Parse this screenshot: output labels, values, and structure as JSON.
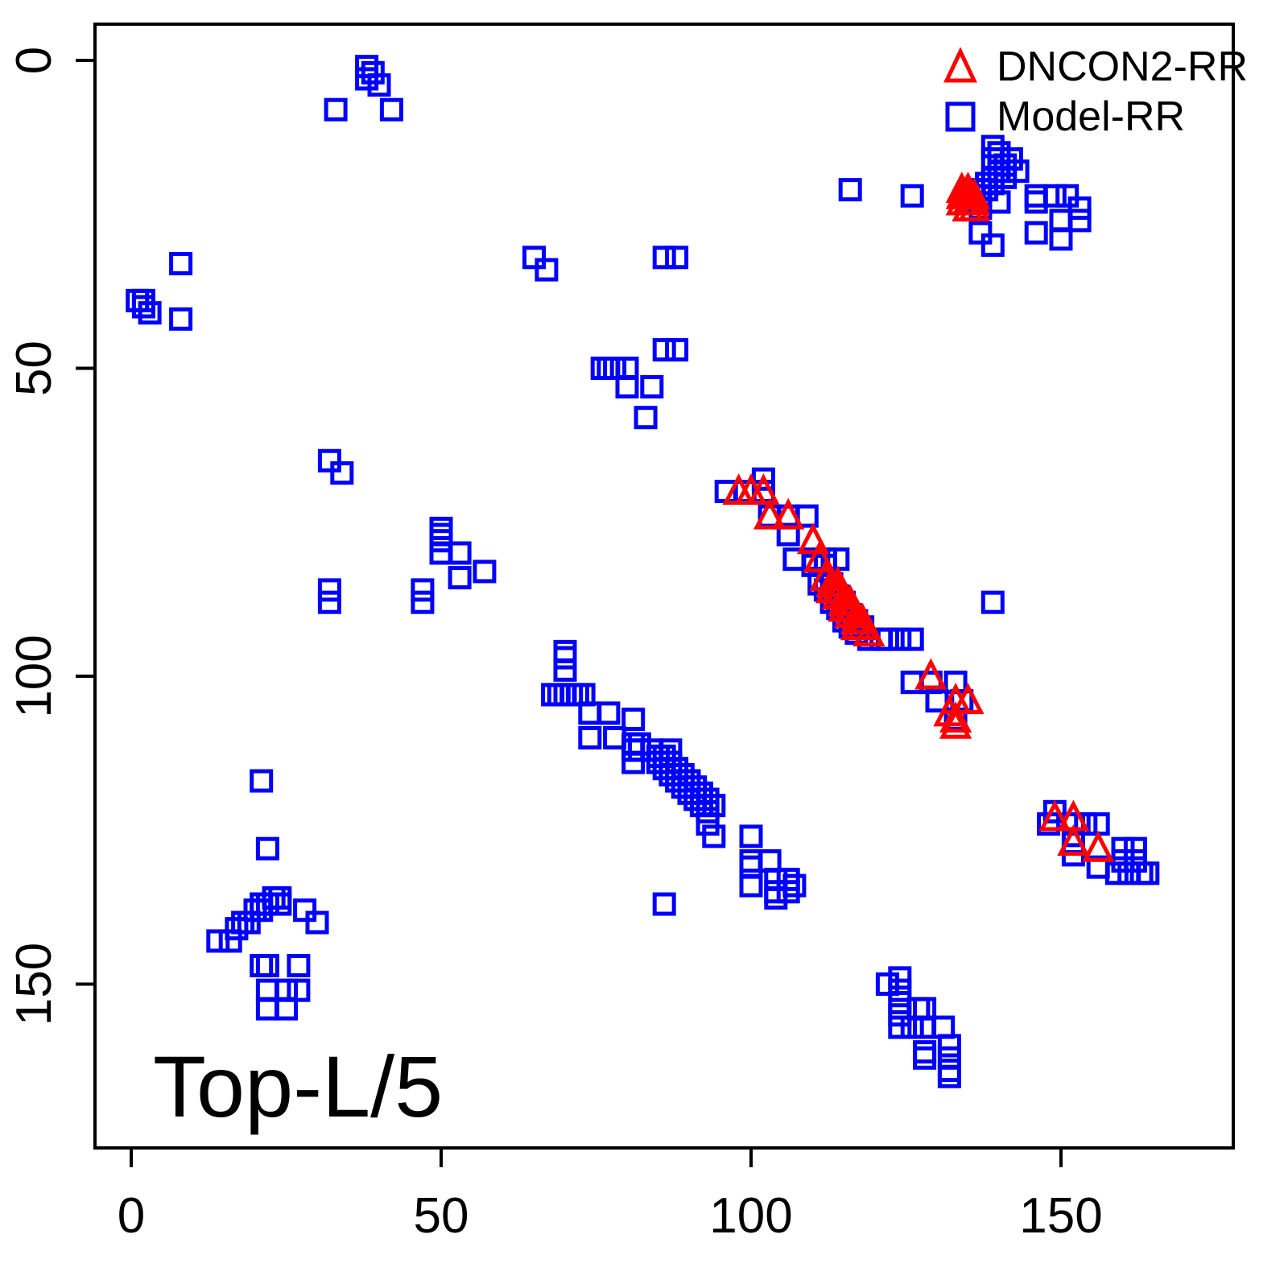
{
  "chart_data": {
    "type": "scatter",
    "title": "",
    "xlabel": "",
    "ylabel": "",
    "annotation": "Top-L/5",
    "x_ticks": [
      0,
      50,
      100,
      150
    ],
    "y_ticks": [
      0,
      50,
      100,
      150
    ],
    "xlim": [
      -6,
      178
    ],
    "ylim": [
      -6,
      176
    ],
    "y_axis_inverted": true,
    "grid": false,
    "legend": {
      "position": "top-right",
      "entries": [
        {
          "label": "DNCON2-RR",
          "marker": "triangle-open",
          "color": "#ff0000"
        },
        {
          "label": "Model-RR",
          "marker": "square-open",
          "color": "#0000ff"
        }
      ]
    },
    "series": [
      {
        "name": "Model-RR",
        "marker": "square-open",
        "color": "#0000ff",
        "points": [
          [
            38,
            1
          ],
          [
            39,
            2
          ],
          [
            38,
            3
          ],
          [
            40,
            4
          ],
          [
            33,
            8
          ],
          [
            42,
            8
          ],
          [
            8,
            33
          ],
          [
            1,
            39
          ],
          [
            2,
            39
          ],
          [
            2,
            40
          ],
          [
            3,
            41
          ],
          [
            8,
            42
          ],
          [
            65,
            32
          ],
          [
            67,
            34
          ],
          [
            86,
            32
          ],
          [
            88,
            32
          ],
          [
            86,
            47
          ],
          [
            88,
            47
          ],
          [
            76,
            50
          ],
          [
            77,
            50
          ],
          [
            78,
            50
          ],
          [
            80,
            50
          ],
          [
            80,
            53
          ],
          [
            84,
            53
          ],
          [
            83,
            58
          ],
          [
            32,
            65
          ],
          [
            34,
            67
          ],
          [
            50,
            76
          ],
          [
            50,
            77
          ],
          [
            50,
            78
          ],
          [
            50,
            80
          ],
          [
            53,
            80
          ],
          [
            53,
            84
          ],
          [
            57,
            83
          ],
          [
            32,
            86
          ],
          [
            32,
            88
          ],
          [
            47,
            86
          ],
          [
            47,
            88
          ],
          [
            96,
            70
          ],
          [
            99,
            70
          ],
          [
            102,
            68
          ],
          [
            102,
            70
          ],
          [
            103,
            74
          ],
          [
            106,
            74
          ],
          [
            109,
            74
          ],
          [
            106,
            77
          ],
          [
            107,
            81
          ],
          [
            110,
            81
          ],
          [
            112,
            81
          ],
          [
            110,
            82
          ],
          [
            112,
            82
          ],
          [
            114,
            81
          ],
          [
            111,
            85
          ],
          [
            113,
            85
          ],
          [
            112,
            86
          ],
          [
            114,
            87
          ],
          [
            113,
            88
          ],
          [
            115,
            88
          ],
          [
            114,
            89
          ],
          [
            116,
            90
          ],
          [
            115,
            91
          ],
          [
            117,
            91
          ],
          [
            116,
            92
          ],
          [
            118,
            92
          ],
          [
            117,
            93
          ],
          [
            119,
            94
          ],
          [
            121,
            94
          ],
          [
            122,
            94
          ],
          [
            124,
            94
          ],
          [
            126,
            94
          ],
          [
            139,
            88
          ],
          [
            126,
            101
          ],
          [
            129,
            101
          ],
          [
            133,
            101
          ],
          [
            130,
            104
          ],
          [
            134,
            104
          ],
          [
            133,
            107
          ],
          [
            70,
            96
          ],
          [
            70,
            97
          ],
          [
            70,
            99
          ],
          [
            68,
            103
          ],
          [
            69,
            103
          ],
          [
            70,
            103
          ],
          [
            71,
            103
          ],
          [
            72,
            103
          ],
          [
            73,
            103
          ],
          [
            74,
            106
          ],
          [
            77,
            106
          ],
          [
            81,
            107
          ],
          [
            74,
            110
          ],
          [
            78,
            110
          ],
          [
            81,
            111
          ],
          [
            82,
            111
          ],
          [
            81,
            112
          ],
          [
            82,
            112
          ],
          [
            81,
            114
          ],
          [
            84,
            112
          ],
          [
            87,
            112
          ],
          [
            85,
            113
          ],
          [
            86,
            113
          ],
          [
            85,
            114
          ],
          [
            87,
            114
          ],
          [
            86,
            115
          ],
          [
            88,
            115
          ],
          [
            87,
            116
          ],
          [
            89,
            116
          ],
          [
            88,
            117
          ],
          [
            90,
            117
          ],
          [
            89,
            118
          ],
          [
            91,
            118
          ],
          [
            90,
            119
          ],
          [
            92,
            119
          ],
          [
            91,
            120
          ],
          [
            93,
            120
          ],
          [
            92,
            121
          ],
          [
            94,
            121
          ],
          [
            93,
            122
          ],
          [
            93,
            124
          ],
          [
            94,
            126
          ],
          [
            100,
            126
          ],
          [
            100,
            130
          ],
          [
            100,
            131
          ],
          [
            100,
            134
          ],
          [
            103,
            130
          ],
          [
            104,
            133
          ],
          [
            106,
            133
          ],
          [
            107,
            134
          ],
          [
            104,
            135
          ],
          [
            106,
            135
          ],
          [
            104,
            136
          ],
          [
            86,
            137
          ],
          [
            21,
            117
          ],
          [
            22,
            128
          ],
          [
            14,
            143
          ],
          [
            16,
            143
          ],
          [
            17,
            141
          ],
          [
            18,
            140
          ],
          [
            19,
            140
          ],
          [
            20,
            138
          ],
          [
            21,
            138
          ],
          [
            21,
            137
          ],
          [
            22,
            137
          ],
          [
            23,
            136
          ],
          [
            24,
            136
          ],
          [
            24,
            137
          ],
          [
            28,
            138
          ],
          [
            30,
            140
          ],
          [
            21,
            147
          ],
          [
            22,
            147
          ],
          [
            27,
            147
          ],
          [
            22,
            151
          ],
          [
            25,
            151
          ],
          [
            27,
            151
          ],
          [
            22,
            154
          ],
          [
            25,
            154
          ],
          [
            149,
            122
          ],
          [
            148,
            124
          ],
          [
            152,
            124
          ],
          [
            154,
            124
          ],
          [
            156,
            124
          ],
          [
            152,
            127
          ],
          [
            152,
            129
          ],
          [
            156,
            131
          ],
          [
            160,
            128
          ],
          [
            162,
            128
          ],
          [
            160,
            130
          ],
          [
            162,
            130
          ],
          [
            159,
            132
          ],
          [
            161,
            132
          ],
          [
            163,
            132
          ],
          [
            164,
            132
          ],
          [
            122,
            150
          ],
          [
            124,
            149
          ],
          [
            124,
            151
          ],
          [
            124,
            153
          ],
          [
            124,
            155
          ],
          [
            127,
            154
          ],
          [
            128,
            154
          ],
          [
            124,
            157
          ],
          [
            126,
            157
          ],
          [
            128,
            157
          ],
          [
            131,
            157
          ],
          [
            128,
            161
          ],
          [
            128,
            162
          ],
          [
            132,
            160
          ],
          [
            132,
            162
          ],
          [
            132,
            164
          ],
          [
            132,
            165
          ],
          [
            116,
            21
          ],
          [
            126,
            22
          ],
          [
            139,
            14
          ],
          [
            140,
            15
          ],
          [
            139,
            16
          ],
          [
            141,
            17
          ],
          [
            142,
            16
          ],
          [
            143,
            18
          ],
          [
            140,
            18
          ],
          [
            141,
            19
          ],
          [
            139,
            19
          ],
          [
            138,
            20
          ],
          [
            139,
            20
          ],
          [
            137,
            21
          ],
          [
            138,
            21
          ],
          [
            136,
            22
          ],
          [
            137,
            22
          ],
          [
            135,
            23
          ],
          [
            137,
            24
          ],
          [
            140,
            23
          ],
          [
            146,
            22
          ],
          [
            146,
            23
          ],
          [
            149,
            22
          ],
          [
            151,
            22
          ],
          [
            153,
            24
          ],
          [
            153,
            26
          ],
          [
            150,
            26
          ],
          [
            150,
            29
          ],
          [
            146,
            28
          ],
          [
            137,
            28
          ],
          [
            139,
            30
          ]
        ]
      },
      {
        "name": "DNCON2-RR",
        "marker": "triangle-open",
        "color": "#ff0000",
        "points": [
          [
            134,
            21
          ],
          [
            135,
            21
          ],
          [
            134,
            22
          ],
          [
            135,
            22
          ],
          [
            136,
            22
          ],
          [
            134,
            23
          ],
          [
            135,
            23
          ],
          [
            136,
            23
          ],
          [
            135,
            24
          ],
          [
            136,
            24
          ],
          [
            98,
            70
          ],
          [
            100,
            70
          ],
          [
            102,
            70
          ],
          [
            103,
            74
          ],
          [
            106,
            74
          ],
          [
            110,
            78
          ],
          [
            111,
            81
          ],
          [
            112,
            84
          ],
          [
            113,
            85
          ],
          [
            114,
            85
          ],
          [
            113,
            86
          ],
          [
            114,
            86
          ],
          [
            115,
            87
          ],
          [
            114,
            87
          ],
          [
            115,
            88
          ],
          [
            116,
            88
          ],
          [
            115,
            89
          ],
          [
            116,
            89
          ],
          [
            117,
            90
          ],
          [
            116,
            90
          ],
          [
            117,
            91
          ],
          [
            118,
            91
          ],
          [
            117,
            92
          ],
          [
            118,
            92
          ],
          [
            119,
            93
          ],
          [
            129,
            100
          ],
          [
            133,
            104
          ],
          [
            135,
            104
          ],
          [
            132,
            106
          ],
          [
            133,
            107
          ],
          [
            133,
            108
          ],
          [
            149,
            123
          ],
          [
            152,
            123
          ],
          [
            152,
            127
          ],
          [
            156,
            128
          ]
        ]
      }
    ]
  }
}
